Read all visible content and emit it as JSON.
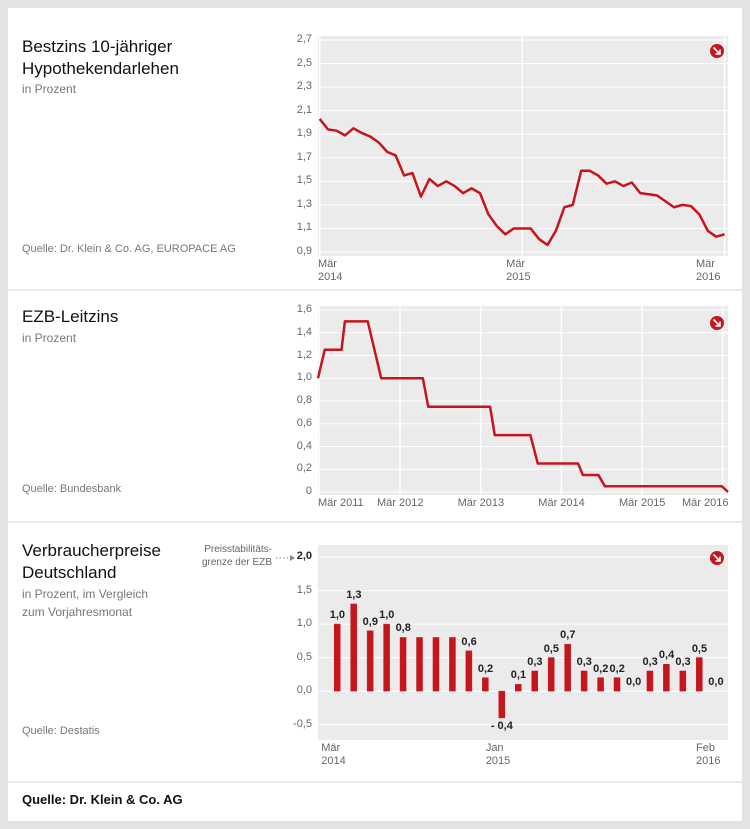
{
  "chart_data": [
    {
      "type": "line",
      "title": "Bestzins 10-jähriger Hypothekendarlehen",
      "subtitle": "in Prozent",
      "source": "Quelle: Dr. Klein & Co. AG, EUROPACE AG",
      "x": [
        0,
        0.5,
        1,
        1.5,
        2,
        2.5,
        3,
        3.5,
        4,
        4.5,
        5,
        5.5,
        6,
        6.5,
        7,
        7.5,
        8,
        8.5,
        9,
        9.5,
        10,
        10.5,
        11,
        11.5,
        12,
        12.5,
        13,
        13.5,
        14,
        14.5,
        15,
        15.5,
        16,
        16.5,
        17,
        17.5,
        18,
        18.5,
        19,
        19.5,
        20,
        20.5,
        21,
        21.5,
        22,
        22.5,
        23,
        23.5,
        24
      ],
      "series": [
        {
          "color": "#c4161c",
          "values": [
            2.03,
            1.94,
            1.93,
            1.89,
            1.95,
            1.91,
            1.88,
            1.83,
            1.75,
            1.72,
            1.55,
            1.57,
            1.37,
            1.52,
            1.46,
            1.5,
            1.46,
            1.4,
            1.44,
            1.4,
            1.22,
            1.12,
            1.05,
            1.1,
            1.1,
            1.1,
            1.01,
            0.96,
            1.08,
            1.28,
            1.3,
            1.59,
            1.59,
            1.55,
            1.48,
            1.5,
            1.46,
            1.49,
            1.4,
            1.39,
            1.38,
            1.33,
            1.28,
            1.3,
            1.29,
            1.22,
            1.08,
            1.03,
            1.05
          ]
        }
      ],
      "xlim": [
        -0.1,
        24.2
      ],
      "xticks": [
        {
          "value": 0,
          "label": "Mär 2014"
        },
        {
          "value": 12,
          "label": "Mär 2015"
        },
        {
          "value": 24,
          "label": "Mär 2016"
        }
      ],
      "ylim": [
        0.9,
        2.7
      ],
      "yticks": [
        {
          "value": 0.9,
          "label": "0,9"
        },
        {
          "value": 1.1,
          "label": "1,1"
        },
        {
          "value": 1.3,
          "label": "1,3"
        },
        {
          "value": 1.5,
          "label": "1,5"
        },
        {
          "value": 1.7,
          "label": "1,7"
        },
        {
          "value": 1.9,
          "label": "1,9"
        },
        {
          "value": 2.1,
          "label": "2,1"
        },
        {
          "value": 2.3,
          "label": "2,3"
        },
        {
          "value": 2.5,
          "label": "2,5"
        },
        {
          "value": 2.7,
          "label": "2,7"
        }
      ],
      "grid": true
    },
    {
      "type": "line",
      "title": "EZB-Leitzins",
      "subtitle": "in Prozent",
      "source": "Quelle: Bundesbank",
      "x": [
        -0.2,
        0.8,
        3.3,
        3.8,
        7.2,
        9.2,
        15.4,
        16.2,
        25.4,
        26.1,
        31.4,
        32.5,
        38.5,
        39.2,
        41.5,
        42.5,
        59.9,
        60.8
      ],
      "series": [
        {
          "color": "#c4161c",
          "values": [
            1.0,
            1.25,
            1.25,
            1.5,
            1.5,
            1.0,
            1.0,
            0.75,
            0.75,
            0.5,
            0.5,
            0.25,
            0.25,
            0.15,
            0.15,
            0.05,
            0.05,
            0
          ]
        }
      ],
      "xlim": [
        -0.2,
        60.8
      ],
      "xticks": [
        {
          "value": 0,
          "label": "Mär 2011"
        },
        {
          "value": 12,
          "label": "Mär 2012"
        },
        {
          "value": 24,
          "label": "Mär 2013"
        },
        {
          "value": 36,
          "label": "Mär 2014"
        },
        {
          "value": 48,
          "label": "Mär 2015"
        },
        {
          "value": 60,
          "label": "Mär 2016"
        }
      ],
      "ylim": [
        0,
        1.6
      ],
      "yticks": [
        0,
        {
          "value": 0.2,
          "label": "0,2"
        },
        {
          "value": 0.4,
          "label": "0,4"
        },
        {
          "value": 0.6,
          "label": "0,6"
        },
        {
          "value": 0.8,
          "label": "0,8"
        },
        {
          "value": 1.0,
          "label": "1,0"
        },
        {
          "value": 1.2,
          "label": "1,2"
        },
        {
          "value": 1.4,
          "label": "1,4"
        },
        {
          "value": 1.6,
          "label": "1,6"
        }
      ],
      "grid": true
    },
    {
      "type": "bar",
      "title": "Verbraucherpreise Deutschland",
      "subtitle": "in Prozent, im Vergleich zum Vorjahresmonat",
      "source": "Quelle: Destatis",
      "annotation": "Preisstabilitäts-grenze der EZB",
      "categories": [
        "Mär 2014",
        null,
        null,
        null,
        null,
        null,
        null,
        null,
        null,
        null,
        "Jan 2015",
        null,
        null,
        null,
        null,
        null,
        null,
        null,
        null,
        null,
        null,
        null,
        null,
        "Feb 2016"
      ],
      "values": [
        1.0,
        1.3,
        0.9,
        1.0,
        0.8,
        0.8,
        0.8,
        0.8,
        0.6,
        0.2,
        -0.4,
        0.1,
        0.3,
        0.5,
        0.7,
        0.3,
        0.2,
        0.2,
        0.0,
        0.3,
        0.4,
        0.3,
        0.5,
        0.0
      ],
      "value_labels": [
        "1,0",
        "1,3",
        "0,9",
        "1,0",
        "0,8",
        null,
        null,
        null,
        "0,6",
        "0,2",
        "- 0,4",
        "0,1",
        "0,3",
        "0,5",
        "0,7",
        "0,3",
        "0,2",
        "0,2",
        "0,0",
        "0,3",
        "0,4",
        "0,3",
        "0,5",
        "0,0"
      ],
      "color": "#c4161c",
      "ylim": [
        -0.73,
        2.18
      ],
      "yticks": [
        {
          "value": -0.5,
          "label": "-0,5"
        },
        {
          "value": 0,
          "label": "0,0"
        },
        {
          "value": 0.5,
          "label": "0,5"
        },
        {
          "value": 1.0,
          "label": "1,0"
        },
        {
          "value": 1.5,
          "label": "1,5"
        },
        {
          "value": 2.0,
          "label": "2,0"
        }
      ],
      "grid": true
    }
  ],
  "footer": {
    "source": "Quelle: Dr. Klein & Co. AG"
  }
}
